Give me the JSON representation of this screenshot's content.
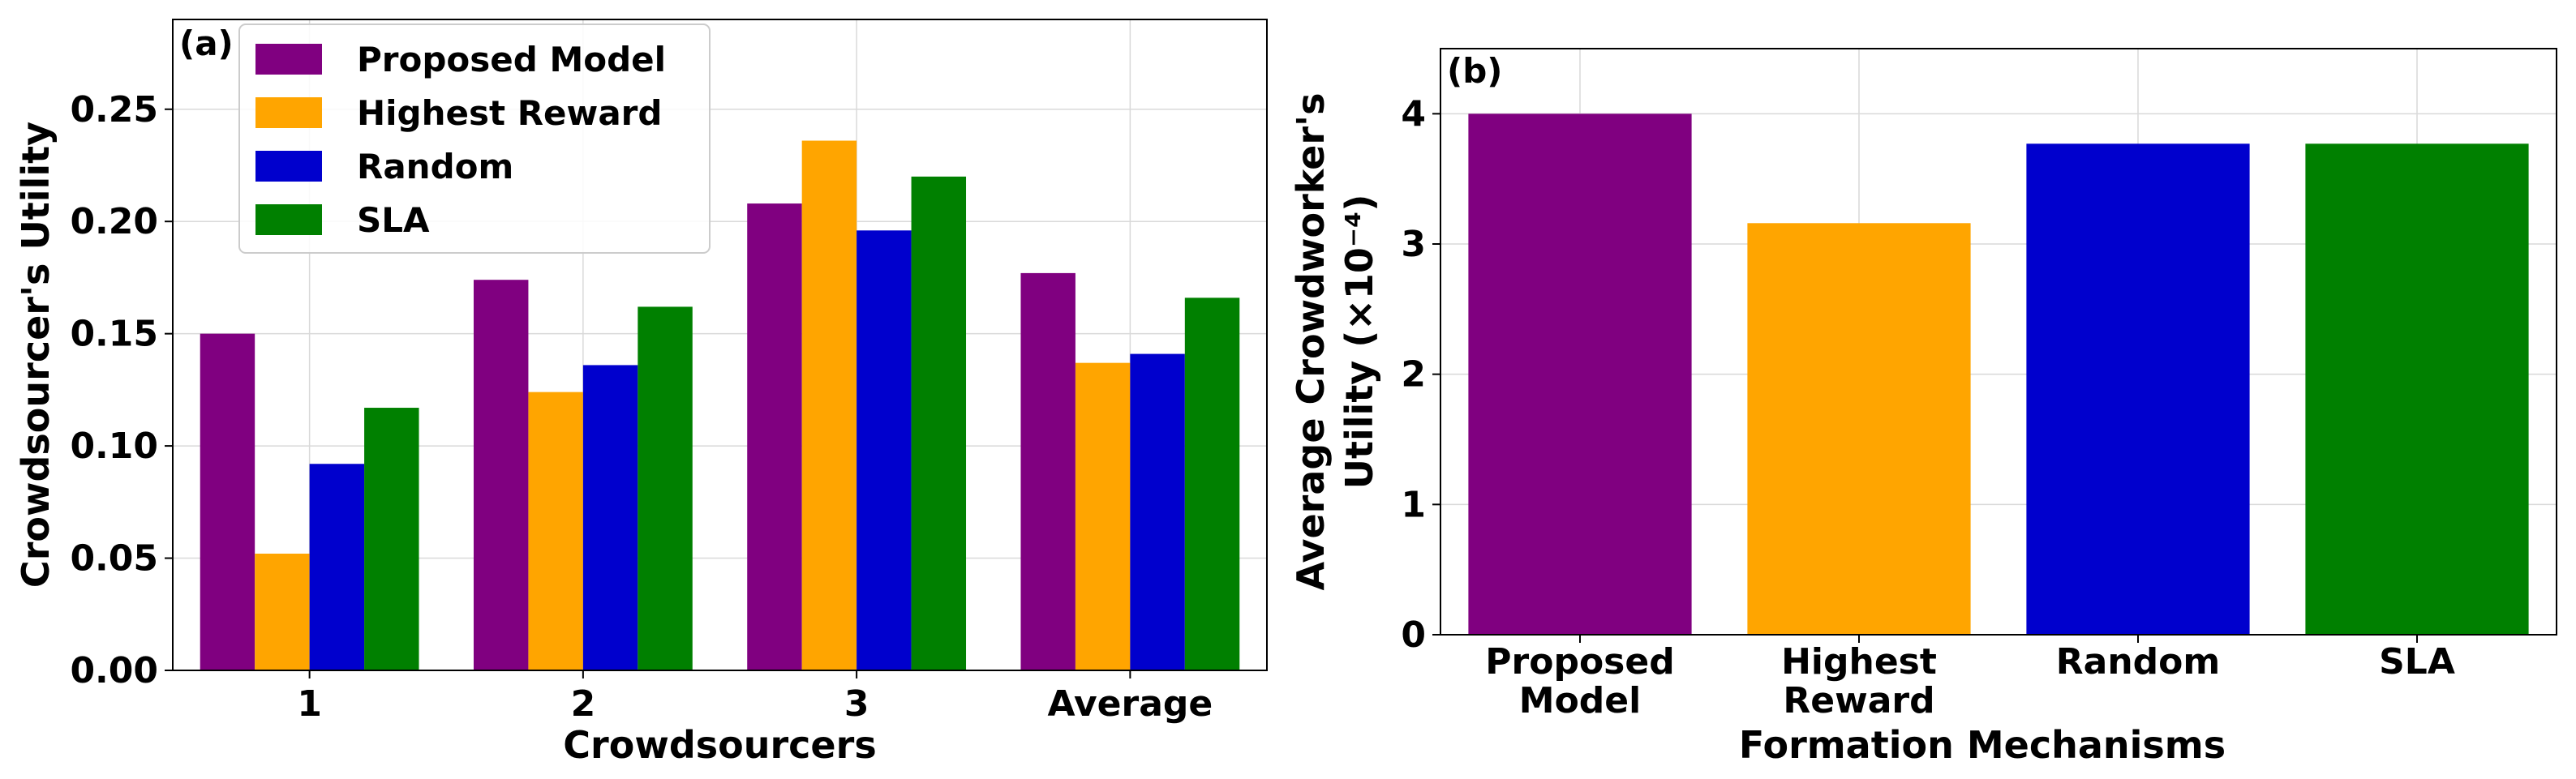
{
  "chart_data": [
    {
      "type": "bar",
      "panel_label": "(a)",
      "title": "",
      "xlabel": "Crowdsourcers",
      "ylabel": "Crowdsourcer's Utility",
      "categories": [
        "1",
        "2",
        "3",
        "Average"
      ],
      "ylim": [
        0,
        0.29
      ],
      "yticks": [
        0.0,
        0.05,
        0.1,
        0.15,
        0.2,
        0.25
      ],
      "ytick_labels": [
        "0.00",
        "0.05",
        "0.10",
        "0.15",
        "0.20",
        "0.25"
      ],
      "grid": true,
      "legend_position": "top-left",
      "series": [
        {
          "name": "Proposed Model",
          "color": "#800080",
          "values": [
            0.15,
            0.174,
            0.208,
            0.177
          ]
        },
        {
          "name": "Highest Reward",
          "color": "#FFA500",
          "values": [
            0.052,
            0.124,
            0.236,
            0.137
          ]
        },
        {
          "name": "Random",
          "color": "#0000CD",
          "values": [
            0.092,
            0.136,
            0.196,
            0.141
          ]
        },
        {
          "name": "SLA",
          "color": "#008000",
          "values": [
            0.117,
            0.162,
            0.22,
            0.166
          ]
        }
      ]
    },
    {
      "type": "bar",
      "panel_label": "(b)",
      "title": "",
      "xlabel": "Formation Mechanisms",
      "ylabel_lines": [
        "Average Crowdworker's",
        "Utility (×10⁻⁴)"
      ],
      "categories": [
        {
          "lines": [
            "Proposed",
            "Model"
          ]
        },
        {
          "lines": [
            "Highest",
            "Reward"
          ]
        },
        {
          "lines": [
            "Random"
          ]
        },
        {
          "lines": [
            "SLA"
          ]
        }
      ],
      "values": [
        4.0,
        3.16,
        3.77,
        3.77
      ],
      "colors": [
        "#800080",
        "#FFA500",
        "#0000CD",
        "#008000"
      ],
      "ylim": [
        0,
        4.5
      ],
      "yticks": [
        0,
        1,
        2,
        3,
        4
      ],
      "ytick_labels": [
        "0",
        "1",
        "2",
        "3",
        "4"
      ],
      "grid": true
    }
  ]
}
